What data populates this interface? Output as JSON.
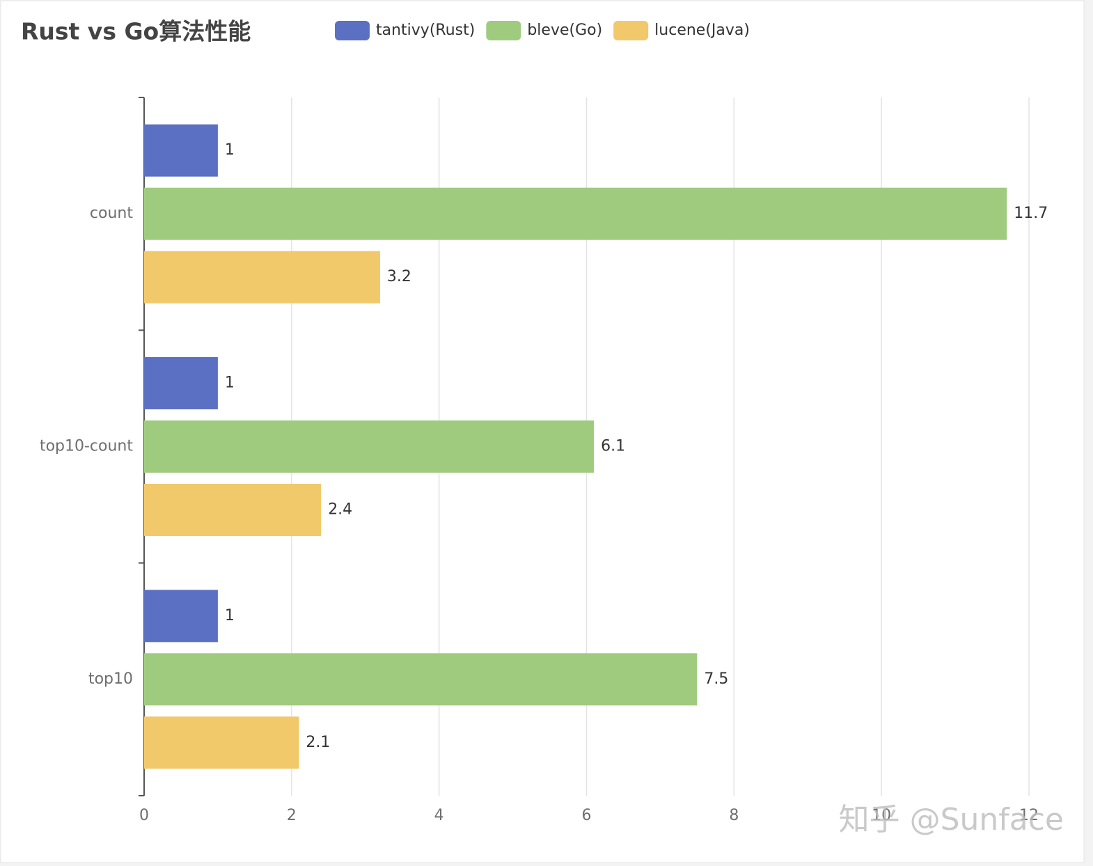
{
  "chart_data": {
    "type": "hbar",
    "title": "Rust vs Go算法性能",
    "categories": [
      "count",
      "top10-count",
      "top10"
    ],
    "series": [
      {
        "name": "tantivy(Rust)",
        "color": "#5b70c2",
        "values": [
          1,
          1,
          1
        ]
      },
      {
        "name": "bleve(Go)",
        "color": "#9fcb7e",
        "values": [
          11.7,
          6.1,
          7.5
        ]
      },
      {
        "name": "lucene(Java)",
        "color": "#f2c96a",
        "values": [
          3.2,
          2.4,
          2.1
        ]
      }
    ],
    "xlim": [
      0,
      12
    ],
    "xticks": [
      0,
      2,
      4,
      6,
      8,
      10,
      12
    ],
    "grid": true,
    "legend": "top",
    "watermark": "知乎 @Sunface"
  }
}
